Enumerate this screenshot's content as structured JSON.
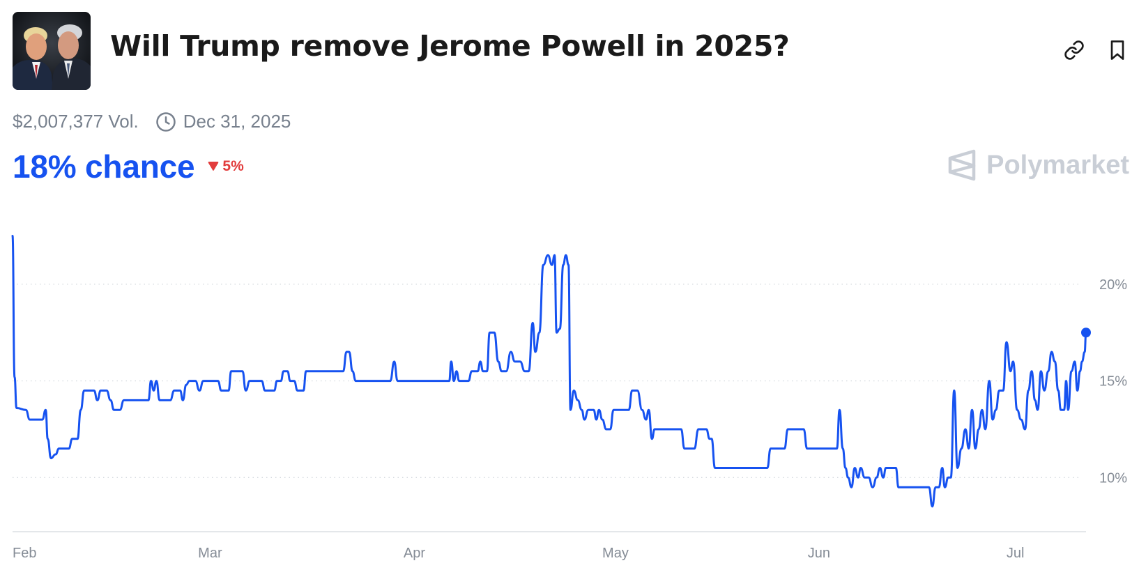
{
  "header": {
    "title": "Will Trump remove Jerome Powell in 2025?",
    "thumbnail_icon": "portrait-photo",
    "link_icon": "link-icon",
    "bookmark_icon": "bookmark-icon"
  },
  "meta": {
    "volume": "$2,007,377 Vol.",
    "end_date": "Dec 31, 2025"
  },
  "summary": {
    "chance_label": "18% chance",
    "delta": "5%",
    "delta_direction": "down"
  },
  "brand": {
    "name": "Polymarket"
  },
  "colors": {
    "accent": "#1652f0",
    "negative": "#e23c3c",
    "muted": "#77808d",
    "brand_gray": "#c9ced6"
  },
  "chart_data": {
    "type": "line",
    "title": "",
    "xlabel": "",
    "ylabel": "",
    "x_tick_labels": [
      "Feb",
      "Mar",
      "Apr",
      "May",
      "Jun",
      "Jul"
    ],
    "y_tick_labels": [
      "20%",
      "15%",
      "10%"
    ],
    "y_ticks": [
      20,
      15,
      10
    ],
    "ylim": [
      7.2,
      22.7
    ],
    "xlim": [
      0,
      162
    ],
    "x_tick_positions": [
      0,
      28,
      59,
      89,
      120,
      150
    ],
    "y_axis_side": "right",
    "grid": "horizontal dotted",
    "series": [
      {
        "values": [
          [
            0,
            22.5
          ],
          [
            0.3,
            15.2
          ],
          [
            0.6,
            13.6
          ],
          [
            2,
            13.5
          ],
          [
            2.6,
            13.0
          ],
          [
            4,
            13.0
          ],
          [
            4.5,
            13.0
          ],
          [
            5,
            13.5
          ],
          [
            5.3,
            12.0
          ],
          [
            5.8,
            11.0
          ],
          [
            6.5,
            11.2
          ],
          [
            7,
            11.5
          ],
          [
            8.5,
            11.5
          ],
          [
            9,
            12.0
          ],
          [
            9.8,
            12.0
          ],
          [
            10.3,
            13.5
          ],
          [
            10.8,
            14.5
          ],
          [
            11.5,
            14.5
          ],
          [
            12.3,
            14.5
          ],
          [
            12.8,
            14.0
          ],
          [
            13.3,
            14.5
          ],
          [
            14.2,
            14.5
          ],
          [
            14.8,
            14.0
          ],
          [
            15.3,
            13.5
          ],
          [
            16.2,
            13.5
          ],
          [
            16.8,
            14.0
          ],
          [
            20.5,
            14.0
          ],
          [
            20.9,
            15.0
          ],
          [
            21.3,
            14.5
          ],
          [
            21.7,
            15.0
          ],
          [
            22.2,
            14.0
          ],
          [
            23.8,
            14.0
          ],
          [
            24.4,
            14.5
          ],
          [
            25.3,
            14.5
          ],
          [
            25.7,
            14.0
          ],
          [
            26.2,
            14.8
          ],
          [
            26.7,
            15.0
          ],
          [
            27.6,
            15.0
          ],
          [
            28.2,
            14.5
          ],
          [
            28.8,
            15.0
          ],
          [
            31,
            15.0
          ],
          [
            31.5,
            14.5
          ],
          [
            32.6,
            14.5
          ],
          [
            33,
            15.5
          ],
          [
            34.7,
            15.5
          ],
          [
            35.2,
            14.5
          ],
          [
            35.8,
            15.0
          ],
          [
            37.6,
            15.0
          ],
          [
            38.1,
            14.5
          ],
          [
            39.5,
            14.5
          ],
          [
            39.9,
            15.0
          ],
          [
            40.5,
            15.0
          ],
          [
            40.9,
            15.5
          ],
          [
            41.5,
            15.5
          ],
          [
            41.9,
            15.0
          ],
          [
            42.5,
            15.0
          ],
          [
            43,
            14.5
          ],
          [
            43.9,
            14.5
          ],
          [
            44.3,
            15.5
          ],
          [
            49.9,
            15.5
          ],
          [
            50.4,
            16.5
          ],
          [
            50.8,
            16.5
          ],
          [
            51.3,
            15.5
          ],
          [
            51.8,
            15.0
          ],
          [
            57,
            15.0
          ],
          [
            57.6,
            16.0
          ],
          [
            58.1,
            15.0
          ],
          [
            65.9,
            15.0
          ],
          [
            66.2,
            16.0
          ],
          [
            66.6,
            15.0
          ],
          [
            67,
            15.5
          ],
          [
            67.4,
            15.0
          ],
          [
            68.8,
            15.0
          ],
          [
            69.3,
            15.5
          ],
          [
            70.2,
            15.5
          ],
          [
            70.6,
            16.0
          ],
          [
            71,
            15.5
          ],
          [
            71.6,
            15.5
          ],
          [
            72,
            17.5
          ],
          [
            72.7,
            17.5
          ],
          [
            73.3,
            16.0
          ],
          [
            73.8,
            15.5
          ],
          [
            74.5,
            15.5
          ],
          [
            75.2,
            16.5
          ],
          [
            75.8,
            16.0
          ],
          [
            76.6,
            16.0
          ],
          [
            77.3,
            15.5
          ],
          [
            77.9,
            15.5
          ],
          [
            78.5,
            18.0
          ],
          [
            78.9,
            16.5
          ],
          [
            79.5,
            17.5
          ],
          [
            80.1,
            21.0
          ],
          [
            80.8,
            21.5
          ],
          [
            81.4,
            21.0
          ],
          [
            81.8,
            21.5
          ],
          [
            82.1,
            17.5
          ],
          [
            82.6,
            17.7
          ],
          [
            83.1,
            21.0
          ],
          [
            83.5,
            21.5
          ],
          [
            83.9,
            21.0
          ],
          [
            84.2,
            13.5
          ],
          [
            84.7,
            14.5
          ],
          [
            85.3,
            14.0
          ],
          [
            85.9,
            13.5
          ],
          [
            86.3,
            13.0
          ],
          [
            86.9,
            13.5
          ],
          [
            87.7,
            13.5
          ],
          [
            88.1,
            13.0
          ],
          [
            88.5,
            13.5
          ],
          [
            89,
            13.0
          ],
          [
            89.6,
            12.5
          ],
          [
            90.2,
            12.5
          ],
          [
            90.7,
            13.5
          ],
          [
            93,
            13.5
          ],
          [
            93.5,
            14.5
          ],
          [
            94.3,
            14.5
          ],
          [
            95,
            13.5
          ],
          [
            95.6,
            13.0
          ],
          [
            96,
            13.5
          ],
          [
            96.5,
            12.0
          ],
          [
            96.9,
            12.5
          ],
          [
            100.9,
            12.5
          ],
          [
            101.4,
            11.5
          ],
          [
            102.9,
            11.5
          ],
          [
            103.5,
            12.5
          ],
          [
            104.7,
            12.5
          ],
          [
            105.2,
            12.0
          ],
          [
            105.5,
            12.0
          ],
          [
            106,
            10.5
          ],
          [
            113.9,
            10.5
          ],
          [
            114.4,
            11.5
          ],
          [
            116.5,
            11.5
          ],
          [
            117,
            12.5
          ],
          [
            119.4,
            12.5
          ],
          [
            119.9,
            11.5
          ],
          [
            124.4,
            11.5
          ],
          [
            124.8,
            13.5
          ],
          [
            125.3,
            11.5
          ],
          [
            125.7,
            10.5
          ],
          [
            126.1,
            10.0
          ],
          [
            126.6,
            9.5
          ],
          [
            127.1,
            10.5
          ],
          [
            127.6,
            10.0
          ],
          [
            128,
            10.5
          ],
          [
            128.6,
            10.0
          ],
          [
            129.2,
            10.0
          ],
          [
            129.8,
            9.5
          ],
          [
            130.4,
            10.0
          ],
          [
            130.9,
            10.5
          ],
          [
            131.4,
            10.0
          ],
          [
            131.8,
            10.5
          ],
          [
            133.3,
            10.5
          ],
          [
            133.7,
            9.5
          ],
          [
            138.3,
            9.5
          ],
          [
            138.8,
            8.5
          ],
          [
            139.3,
            9.5
          ],
          [
            139.8,
            9.5
          ],
          [
            140.3,
            10.5
          ],
          [
            140.7,
            9.5
          ],
          [
            141.2,
            10.0
          ],
          [
            141.6,
            10.0
          ],
          [
            142.1,
            14.5
          ],
          [
            142.6,
            10.5
          ],
          [
            143.2,
            11.5
          ],
          [
            143.8,
            12.5
          ],
          [
            144.3,
            11.5
          ],
          [
            144.8,
            13.5
          ],
          [
            145.3,
            11.5
          ],
          [
            145.8,
            12.5
          ],
          [
            146.3,
            13.5
          ],
          [
            146.8,
            12.5
          ],
          [
            147.4,
            15.0
          ],
          [
            147.9,
            13.0
          ],
          [
            148.4,
            13.5
          ],
          [
            148.9,
            14.5
          ],
          [
            149.5,
            14.5
          ],
          [
            150,
            17.0
          ],
          [
            150.6,
            15.5
          ],
          [
            151,
            16.0
          ],
          [
            151.6,
            13.5
          ],
          [
            152.2,
            13.0
          ],
          [
            152.8,
            12.5
          ],
          [
            153.3,
            14.5
          ],
          [
            153.8,
            15.5
          ],
          [
            154.3,
            14.0
          ],
          [
            154.7,
            13.5
          ],
          [
            155.2,
            15.5
          ],
          [
            155.7,
            14.5
          ],
          [
            156.3,
            15.5
          ],
          [
            156.8,
            16.5
          ],
          [
            157.3,
            16.0
          ],
          [
            157.8,
            14.5
          ],
          [
            158.2,
            13.5
          ],
          [
            158.7,
            13.5
          ],
          [
            159,
            15.0
          ],
          [
            159.3,
            13.5
          ],
          [
            159.8,
            15.5
          ],
          [
            160.3,
            16.0
          ],
          [
            160.7,
            14.5
          ],
          [
            161.1,
            15.5
          ],
          [
            161.4,
            16.0
          ],
          [
            161.8,
            16.5
          ],
          [
            162,
            17.5
          ]
        ]
      }
    ],
    "last_point_marker": true
  }
}
